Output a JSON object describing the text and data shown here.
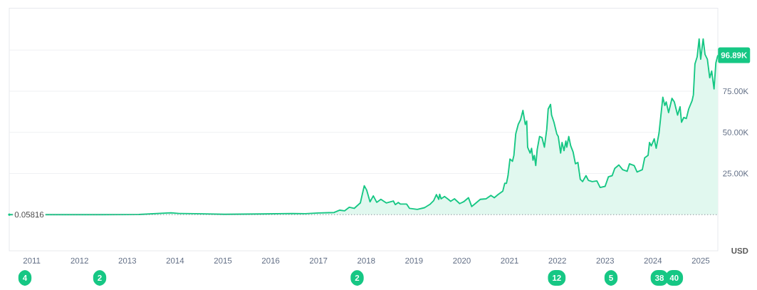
{
  "chart_data": {
    "type": "area",
    "color": "#16c784",
    "ylabel": "USD",
    "grid": "y",
    "xlim": [
      "2010-07-13",
      "2025-05-12"
    ],
    "ylim": [
      -22000,
      125500
    ],
    "xticks": [
      {
        "value": "2011",
        "label": "2011"
      },
      {
        "value": "2012",
        "label": "2012"
      },
      {
        "value": "2013",
        "label": "2013"
      },
      {
        "value": "2014",
        "label": "2014"
      },
      {
        "value": "2015",
        "label": "2015"
      },
      {
        "value": "2016",
        "label": "2016"
      },
      {
        "value": "2017",
        "label": "2017"
      },
      {
        "value": "2018",
        "label": "2018"
      },
      {
        "value": "2019",
        "label": "2019"
      },
      {
        "value": "2020",
        "label": "2020"
      },
      {
        "value": "2021",
        "label": "2021"
      },
      {
        "value": "2022",
        "label": "2022"
      },
      {
        "value": "2023",
        "label": "2023"
      },
      {
        "value": "2024",
        "label": "2024"
      },
      {
        "value": "2025",
        "label": "2025"
      }
    ],
    "yticks": [
      {
        "value": 25000,
        "label": "25.00K"
      },
      {
        "value": 50000,
        "label": "50.00K"
      },
      {
        "value": 75000,
        "label": "75.00K"
      },
      {
        "value": 100000,
        "label": null
      }
    ],
    "x": [
      "2010-07-13",
      "2011-06-01",
      "2012-06-01",
      "2013-04-01",
      "2013-12-01",
      "2014-02-01",
      "2014-06-01",
      "2015-01-15",
      "2015-11-01",
      "2016-06-15",
      "2016-09-23",
      "2017-01-01",
      "2017-05-01",
      "2017-06-13",
      "2017-07-19",
      "2017-08-25",
      "2017-10-01",
      "2017-11-17",
      "2017-12-17",
      "2018-01-04",
      "2018-01-30",
      "2018-02-24",
      "2018-03-22",
      "2018-04-23",
      "2018-06-03",
      "2018-07-27",
      "2018-08-11",
      "2018-09-02",
      "2018-09-20",
      "2018-11-06",
      "2018-11-28",
      "2019-01-26",
      "2019-03-22",
      "2019-05-05",
      "2019-05-31",
      "2019-06-21",
      "2019-07-09",
      "2019-07-16",
      "2019-07-27",
      "2019-08-22",
      "2019-09-20",
      "2019-10-08",
      "2019-11-06",
      "2019-12-16",
      "2020-01-15",
      "2020-02-21",
      "2020-03-17",
      "2020-04-08",
      "2020-05-22",
      "2020-07-05",
      "2020-08-11",
      "2020-09-06",
      "2020-10-05",
      "2020-11-10",
      "2020-11-25",
      "2020-12-08",
      "2020-12-20",
      "2021-01-04",
      "2021-01-23",
      "2021-02-03",
      "2021-02-17",
      "2021-03-08",
      "2021-03-26",
      "2021-04-13",
      "2021-05-01",
      "2021-05-12",
      "2021-05-19",
      "2021-06-07",
      "2021-06-18",
      "2021-06-29",
      "2021-07-09",
      "2021-07-20",
      "2021-07-31",
      "2021-08-18",
      "2021-09-06",
      "2021-09-24",
      "2021-10-12",
      "2021-10-23",
      "2021-11-10",
      "2021-11-18",
      "2021-12-06",
      "2021-12-28",
      "2022-01-08",
      "2022-01-26",
      "2022-02-06",
      "2022-02-21",
      "2022-03-07",
      "2022-03-14",
      "2022-03-29",
      "2022-04-13",
      "2022-05-01",
      "2022-05-19",
      "2022-06-07",
      "2022-06-25",
      "2022-07-13",
      "2022-08-08",
      "2022-08-26",
      "2022-09-24",
      "2022-10-30",
      "2022-11-24",
      "2023-01-01",
      "2023-01-26",
      "2023-02-24",
      "2023-03-15",
      "2023-04-16",
      "2023-05-15",
      "2023-06-18",
      "2023-07-06",
      "2023-08-11",
      "2023-09-02",
      "2023-10-12",
      "2023-10-30",
      "2023-11-25",
      "2023-12-06",
      "2023-12-20",
      "2024-01-11",
      "2024-01-26",
      "2024-02-17",
      "2024-03-17",
      "2024-04-01",
      "2024-04-12",
      "2024-04-30",
      "2024-05-26",
      "2024-06-13",
      "2024-07-08",
      "2024-07-27",
      "2024-08-07",
      "2024-08-25",
      "2024-09-13",
      "2024-10-01",
      "2024-10-27",
      "2024-11-06",
      "2024-11-18",
      "2024-12-05",
      "2024-12-20",
      "2025-01-01",
      "2025-01-20",
      "2025-02-03",
      "2025-02-21",
      "2025-03-11",
      "2025-03-26",
      "2025-04-13",
      "2025-04-27",
      "2025-05-12"
    ],
    "values": [
      0,
      0,
      0,
      100,
      1100,
      700,
      600,
      200,
      400,
      700,
      600,
      1000,
      1300,
      2700,
      2300,
      4500,
      3800,
      7100,
      17600,
      15000,
      7800,
      11400,
      7500,
      9300,
      7100,
      8300,
      6100,
      7400,
      6400,
      6400,
      3800,
      3200,
      4200,
      6400,
      8500,
      12200,
      9300,
      12400,
      9600,
      11000,
      9300,
      8100,
      9600,
      6700,
      7800,
      10300,
      4900,
      6400,
      9300,
      9600,
      11700,
      10300,
      12200,
      14300,
      19100,
      19000,
      23700,
      33800,
      32400,
      36000,
      49000,
      54800,
      57700,
      63400,
      54800,
      56900,
      41000,
      37400,
      40300,
      33100,
      36000,
      29800,
      39600,
      47500,
      46800,
      41000,
      51900,
      64200,
      67000,
      60500,
      56200,
      49000,
      47500,
      37400,
      43900,
      38900,
      44700,
      41000,
      47500,
      41800,
      38200,
      30900,
      31700,
      21500,
      20100,
      23700,
      20800,
      20100,
      20500,
      16500,
      17200,
      23000,
      23700,
      28000,
      30200,
      27300,
      26300,
      30900,
      29800,
      25900,
      27300,
      34500,
      36000,
      43900,
      41800,
      46100,
      40300,
      49700,
      71400,
      66300,
      68500,
      62000,
      70700,
      68500,
      60500,
      65600,
      56200,
      59100,
      58400,
      64200,
      69200,
      72800,
      91600,
      95900,
      106800,
      94500,
      106800,
      97400,
      94500,
      83200,
      87300,
      76400,
      92300,
      96890
    ],
    "ref_lines": [
      {
        "axis": "y",
        "value": 0.05816,
        "label": "0.05816",
        "line_style": "dotted",
        "color": "#8a8f99"
      }
    ],
    "annotations": [
      {
        "text": "96.89K",
        "x": "2025-05-12",
        "y": 96890
      },
      "4",
      "2",
      "2",
      "12",
      "5",
      "38",
      "40"
    ]
  }
}
